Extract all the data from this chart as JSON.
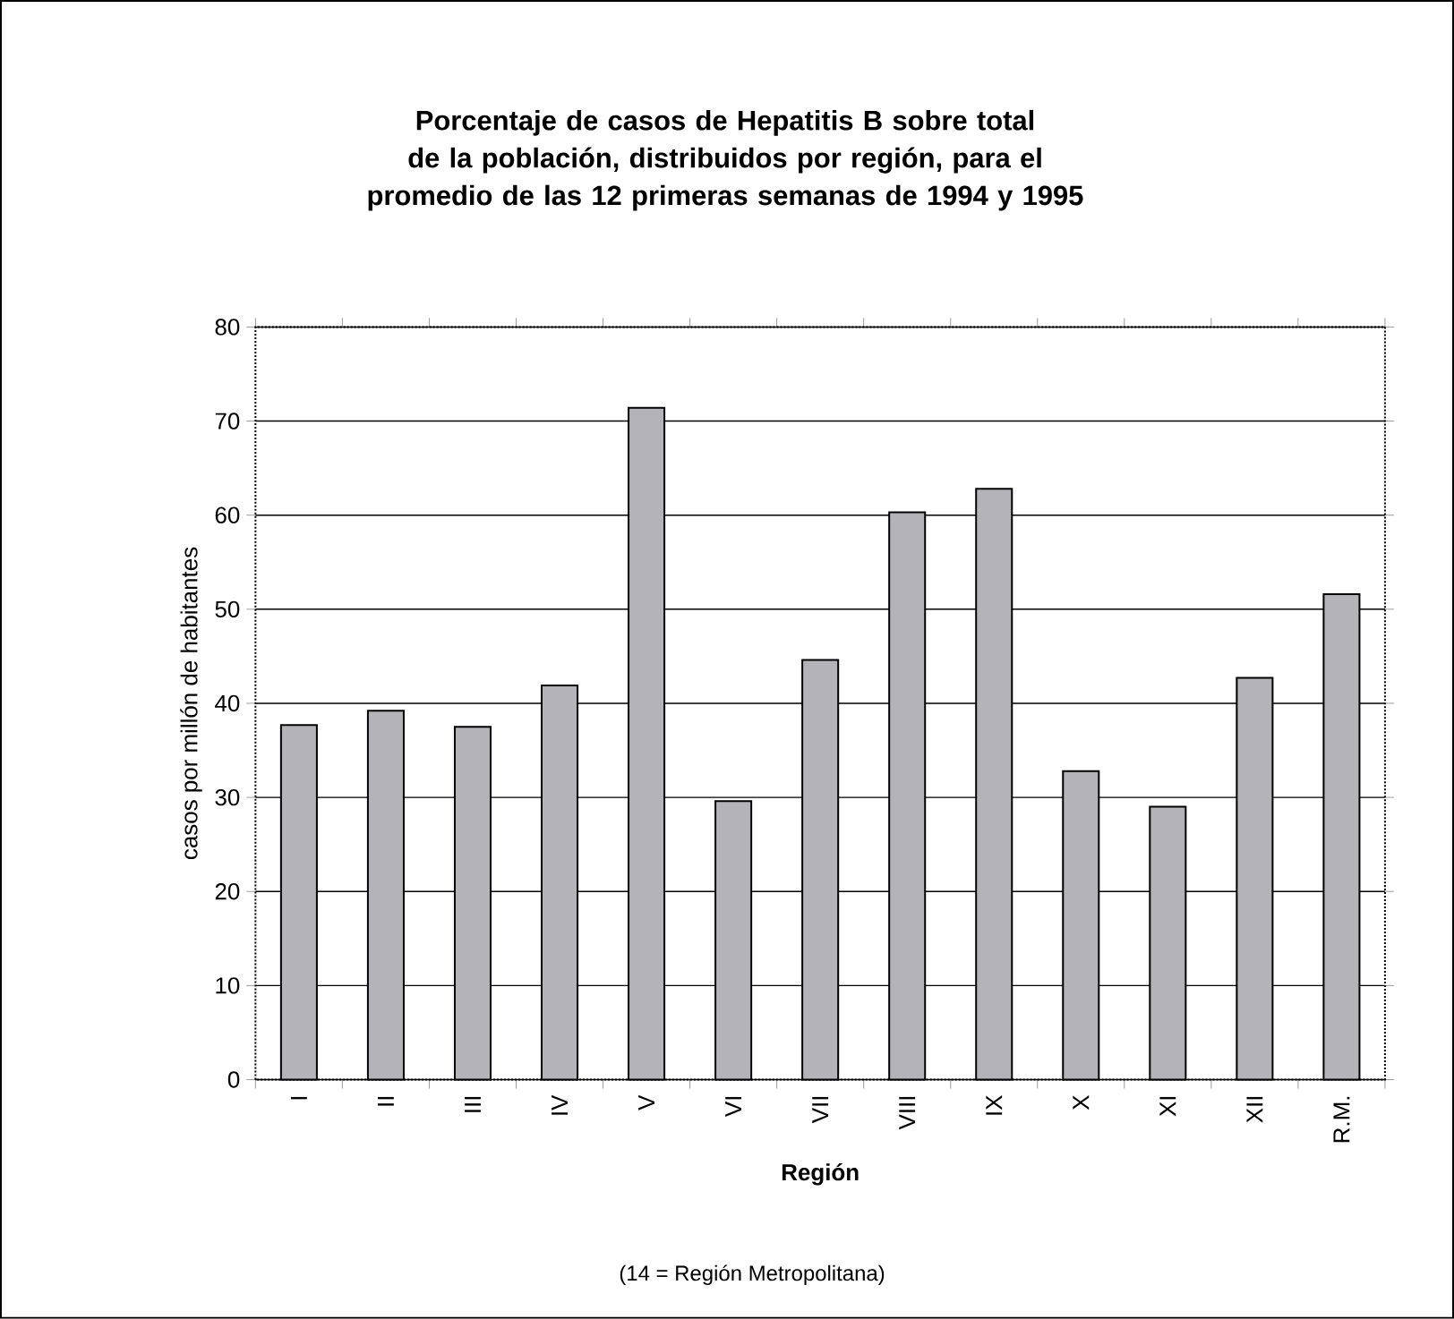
{
  "chart_data": {
    "type": "bar",
    "title": "Porcentaje de casos de Hepatitis B sobre total de la población, distribuidos por región, para el promedio de las 12 primeras semanas de 1994 y 1995",
    "xlabel": "Región",
    "ylabel": "casos por millón de habitantes",
    "annotations": [
      "(14 = Región Metropolitana)"
    ],
    "categories": [
      "I",
      "II",
      "III",
      "IV",
      "V",
      "VI",
      "VII",
      "VIII",
      "IX",
      "X",
      "XI",
      "XII",
      "R.M."
    ],
    "values": [
      37.7,
      39.2,
      37.5,
      41.9,
      71.4,
      29.6,
      44.6,
      60.3,
      62.8,
      32.8,
      29.0,
      42.7,
      51.6
    ],
    "color": "#b4b4b8",
    "ylim": [
      0,
      80
    ],
    "yticks": [
      0,
      10,
      20,
      30,
      40,
      50,
      60,
      70,
      80
    ],
    "grid": "y"
  }
}
